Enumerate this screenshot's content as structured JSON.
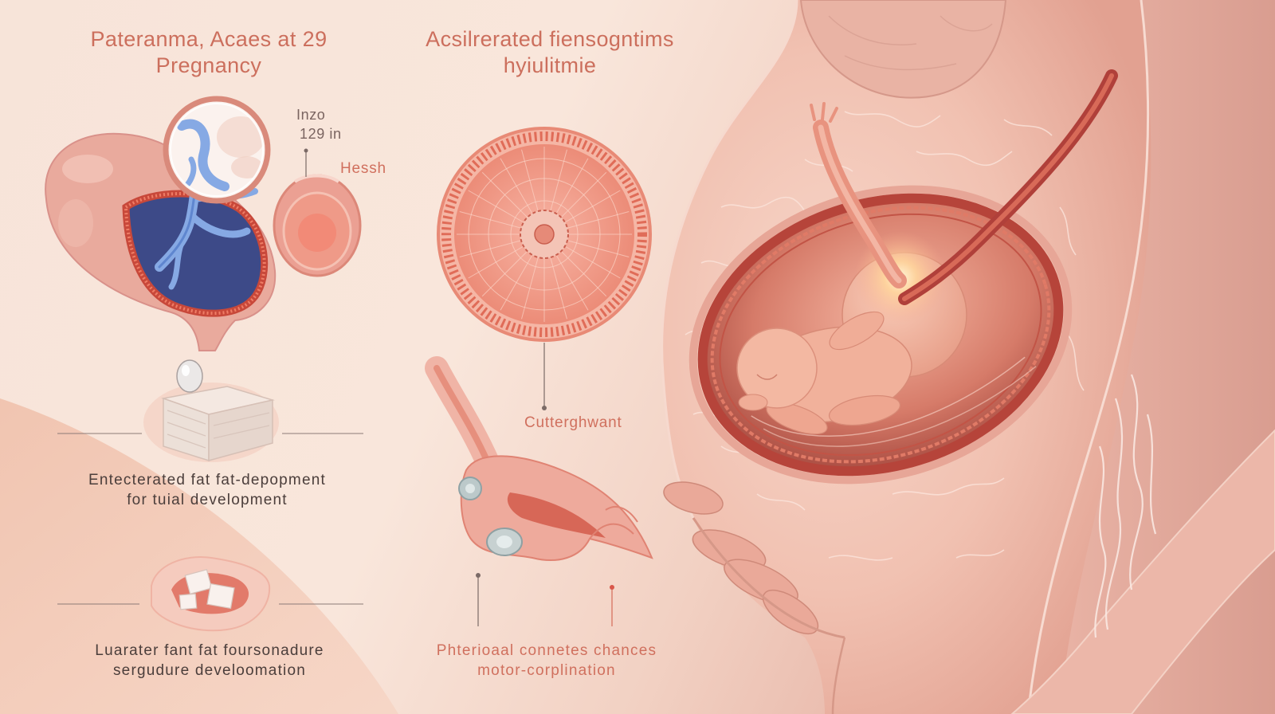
{
  "titles": {
    "left": {
      "line1": "Pateranma, Acaes at 29",
      "line2": "Pregnancy"
    },
    "center": {
      "line1": "Acsilrerated fiensogntims",
      "line2": "hyiulitmie"
    }
  },
  "labels": {
    "inzo": "Inzo",
    "size": "129 in",
    "hessh": "Hessh",
    "cutterghwant": "Cutterghwant"
  },
  "captions": {
    "left_middle": {
      "line1": "Entecterated fat fat-depopment",
      "line2": "for tuial development"
    },
    "left_bottom": {
      "line1": "Luarater fant fat foursonadure",
      "line2": "sergudure develoomation"
    },
    "center_bottom": {
      "line1": "Phterioaal connetes chances",
      "line2": "motor-corplination"
    }
  },
  "colors": {
    "title": "#cc6f5d",
    "label": "#7a6460",
    "caption": "#4b3e3b",
    "accent": "#d0705e",
    "background": "#f7e5da"
  }
}
